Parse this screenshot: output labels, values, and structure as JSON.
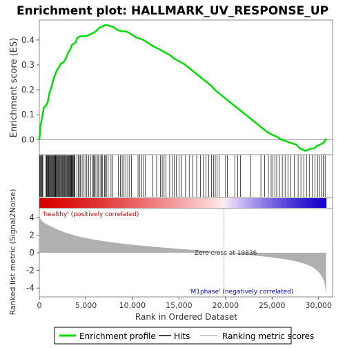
{
  "chart_data": {
    "type": "line",
    "title": "Enrichment plot: HALLMARK_UV_RESPONSE_UP",
    "top_panel": {
      "ylabel": "Enrichment score (ES)",
      "ylim": [
        -0.06,
        0.48
      ],
      "y_ticks": [
        "0.0",
        "0.1",
        "0.2",
        "0.3",
        "0.4"
      ],
      "y_tick_values": [
        0.0,
        0.1,
        0.2,
        0.3,
        0.4
      ],
      "series": [
        {
          "name": "Enrichment profile",
          "color": "#00dd00",
          "x": [
            0,
            150,
            300,
            500,
            700,
            900,
            1100,
            1300,
            1500,
            1700,
            1900,
            2100,
            2300,
            2600,
            2900,
            3100,
            3300,
            3500,
            3700,
            3900,
            4100,
            4400,
            4700,
            5000,
            5300,
            5600,
            5900,
            6200,
            6500,
            6800,
            7100,
            7400,
            7700,
            8000,
            8400,
            8800,
            9200,
            9600,
            10000,
            10400,
            10800,
            11200,
            11600,
            12000,
            12500,
            13000,
            13500,
            14000,
            14500,
            15000,
            15500,
            16000,
            16500,
            17000,
            17500,
            18000,
            18500,
            19000,
            19500,
            20000,
            20500,
            21000,
            21500,
            22000,
            22500,
            23000,
            23500,
            24000,
            24500,
            25000,
            25300,
            25600,
            26000,
            26400,
            26800,
            27200,
            27600,
            28000,
            28300,
            28600,
            28900,
            29200,
            29500,
            29800,
            30100,
            30400,
            30600,
            30800
          ],
          "y": [
            0.0,
            0.06,
            0.09,
            0.13,
            0.135,
            0.15,
            0.19,
            0.21,
            0.24,
            0.26,
            0.28,
            0.29,
            0.305,
            0.31,
            0.33,
            0.35,
            0.36,
            0.38,
            0.385,
            0.39,
            0.41,
            0.415,
            0.415,
            0.415,
            0.42,
            0.425,
            0.43,
            0.44,
            0.45,
            0.455,
            0.46,
            0.458,
            0.455,
            0.45,
            0.44,
            0.435,
            0.435,
            0.43,
            0.42,
            0.41,
            0.405,
            0.4,
            0.39,
            0.38,
            0.37,
            0.36,
            0.35,
            0.34,
            0.325,
            0.315,
            0.305,
            0.29,
            0.275,
            0.26,
            0.245,
            0.23,
            0.215,
            0.195,
            0.18,
            0.165,
            0.15,
            0.135,
            0.12,
            0.105,
            0.09,
            0.075,
            0.06,
            0.045,
            0.03,
            0.02,
            0.015,
            0.01,
            0.0,
            -0.005,
            -0.01,
            -0.015,
            -0.02,
            -0.035,
            -0.04,
            -0.045,
            -0.04,
            -0.035,
            -0.035,
            -0.025,
            -0.02,
            -0.015,
            -0.01,
            0.005
          ]
        }
      ],
      "zero_line": 0.0
    },
    "hits_panel": {
      "name": "Hits",
      "hit_positions": [
        50,
        120,
        200,
        260,
        330,
        380,
        700,
        760,
        820,
        900,
        950,
        1010,
        1080,
        1150,
        1230,
        1290,
        1370,
        1450,
        1520,
        1580,
        1650,
        1710,
        1760,
        1830,
        1900,
        1980,
        2050,
        2120,
        2200,
        2280,
        2350,
        2430,
        2500,
        2570,
        2650,
        2720,
        2800,
        2870,
        2950,
        3020,
        3090,
        3150,
        3220,
        3290,
        3360,
        3420,
        3480,
        3550,
        3620,
        3700,
        3760,
        3820,
        4050,
        4200,
        4300,
        4400,
        4600,
        4800,
        5000,
        5100,
        5300,
        5500,
        5700,
        5800,
        5900,
        6000,
        6200,
        6300,
        6400,
        6600,
        6700,
        6800,
        7000,
        7100,
        7200,
        7400,
        7700,
        7900,
        8500,
        8700,
        8900,
        9100,
        9300,
        9500,
        9700,
        9900,
        10600,
        10800,
        11000,
        11200,
        11400,
        12200,
        12600,
        13000,
        13200,
        13400,
        13600,
        14000,
        14300,
        14500,
        14700,
        15000,
        15300,
        15700,
        16100,
        16500,
        16900,
        17300,
        17600,
        17900,
        18200,
        18500,
        18700,
        18900,
        19100,
        19300,
        20000,
        20200,
        21000,
        21300,
        21600,
        22700,
        23800,
        24200,
        24600,
        24900,
        25100,
        25300,
        25500,
        25800,
        26100,
        26400,
        26700,
        27000,
        27400,
        27800,
        28100,
        28400,
        28700,
        29000,
        29300,
        29600,
        29900,
        30100,
        30300,
        30500,
        30700
      ]
    },
    "ranking_panel": {
      "ylabel": "Ranked list metric (Signal2Noise)",
      "ylim": [
        -5,
        5
      ],
      "y_ticks": [
        "-4",
        "-2",
        "0",
        "2",
        "4"
      ],
      "y_tick_values": [
        -4,
        -2,
        0,
        2,
        4
      ],
      "x": [
        0,
        50,
        200,
        500,
        1000,
        2000,
        3000,
        4000,
        5000,
        6000,
        7000,
        8000,
        9000,
        10000,
        11000,
        12000,
        13000,
        14000,
        15000,
        16000,
        17000,
        18000,
        19000,
        19836,
        20500,
        21500,
        22500,
        23500,
        24500,
        25500,
        26500,
        27500,
        28500,
        29200,
        29700,
        30100,
        30400,
        30600,
        30700,
        30800
      ],
      "metric": [
        4.8,
        4.0,
        3.7,
        3.4,
        3.1,
        2.6,
        2.2,
        1.9,
        1.65,
        1.45,
        1.3,
        1.15,
        1.02,
        0.9,
        0.8,
        0.7,
        0.6,
        0.52,
        0.44,
        0.36,
        0.28,
        0.2,
        0.1,
        0.0,
        -0.08,
        -0.17,
        -0.26,
        -0.36,
        -0.47,
        -0.6,
        -0.75,
        -0.95,
        -1.25,
        -1.55,
        -1.9,
        -2.3,
        -2.8,
        -3.3,
        -3.9,
        -4.7
      ],
      "zero_cross_label": "Zero cross at 19836",
      "zero_cross": 19836,
      "positive_label": "'healthy' (positively correlated)",
      "negative_label": "'M1phase' (negatively correlated)",
      "fill_color": "#b0b0b0"
    },
    "xlabel": "Rank in Ordered Dataset",
    "xlim": [
      0,
      31500
    ],
    "x_ticks": [
      "0",
      "5,000",
      "10,000",
      "15,000",
      "20,000",
      "25,000",
      "30,000"
    ],
    "x_tick_values": [
      0,
      5000,
      10000,
      15000,
      20000,
      25000,
      30000
    ],
    "n_genes": 30800,
    "colors": {
      "enrichment_line": "#00dd00",
      "hit_line": "#000000",
      "positive_label": "#cc0000",
      "negative_label": "#0000cc",
      "zero_line": "#888888"
    },
    "legend": {
      "placement": "bottom",
      "items": [
        {
          "label": "Enrichment profile",
          "color": "#00dd00",
          "style": "line"
        },
        {
          "label": "Hits",
          "color": "#444444",
          "style": "line"
        },
        {
          "label": "Ranking metric scores",
          "color": "#cccccc",
          "style": "line"
        }
      ]
    }
  }
}
